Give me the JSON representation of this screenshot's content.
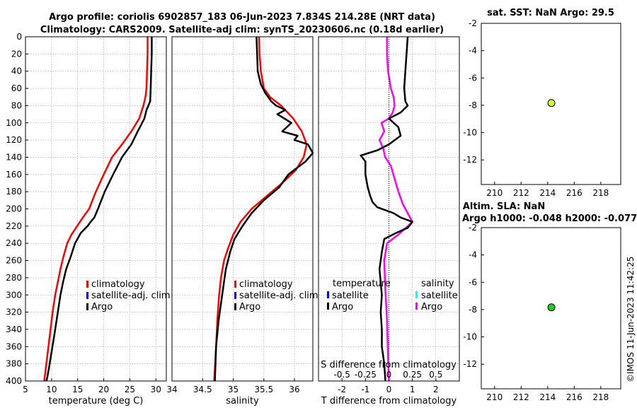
{
  "title_line1": "Argo profile: coriolis 6902857_183 06-Jun-2023 7.834S 214.28E (NRT data)",
  "title_line2": "Climatology: CARS2009. Satellite-adj clim: synTS_20230606.nc (0.18d earlier)",
  "watermark": "©IMOS 11-Jun-2023 11:42:25",
  "legend": {
    "climatology": "climatology",
    "satellite_adj": "satellite-adj. clim",
    "argo": "Argo",
    "temperature_hdr": "temperature",
    "salinity_hdr": "salinity",
    "satellite": "satellite"
  },
  "colors": {
    "climatology": "#ff0000",
    "satellite_adj": "#0000ff",
    "argo": "#000000",
    "sal_satellite": "#00ffff",
    "sal_argo": "#ff00ff",
    "sst_marker": "#ccff33",
    "sla_marker": "#22cc22"
  },
  "chart_data": [
    {
      "id": "temperature",
      "type": "line",
      "xlabel": "temperature (deg C)",
      "ylabel": "",
      "xlim": [
        5,
        32
      ],
      "ylim": [
        400,
        0
      ],
      "xticks": [
        5,
        10,
        15,
        20,
        25,
        30
      ],
      "yticks": [
        0,
        20,
        40,
        60,
        80,
        100,
        120,
        140,
        160,
        180,
        200,
        220,
        240,
        260,
        280,
        300,
        320,
        340,
        360,
        380,
        400
      ],
      "series": [
        {
          "name": "climatology",
          "x": [
            28.4,
            28.4,
            28.3,
            28.2,
            28.0,
            27.6,
            26.8,
            25.3,
            23.5,
            21.6,
            20.0,
            18.5,
            17.2,
            16.0,
            14.9,
            13.8,
            13.0,
            12.3,
            11.7,
            11.2,
            10.7,
            10.2,
            9.8,
            9.4,
            9.1,
            8.8,
            8.6
          ],
          "depth": [
            0,
            20,
            40,
            60,
            70,
            80,
            95,
            110,
            125,
            140,
            160,
            180,
            200,
            210,
            220,
            230,
            240,
            255,
            270,
            285,
            300,
            320,
            340,
            360,
            375,
            390,
            400
          ]
        },
        {
          "name": "Argo",
          "x": [
            29.2,
            29.2,
            29.1,
            29.0,
            28.9,
            28.2,
            27.8,
            26.5,
            25.3,
            23.5,
            21.8,
            20.2,
            18.9,
            18.2,
            17.5,
            16.9,
            15.6,
            14.5,
            13.7,
            12.8,
            12.2,
            11.7,
            11.2,
            10.7,
            10.3,
            9.9,
            9.5,
            9.2,
            9.0
          ],
          "depth": [
            0,
            20,
            40,
            60,
            75,
            85,
            95,
            110,
            125,
            140,
            160,
            180,
            200,
            210,
            215,
            220,
            228,
            240,
            255,
            270,
            285,
            300,
            320,
            340,
            355,
            370,
            385,
            395,
            400
          ]
        }
      ]
    },
    {
      "id": "salinity",
      "type": "line",
      "xlabel": "salinity",
      "ylabel": "",
      "xlim": [
        34,
        36.3
      ],
      "ylim": [
        400,
        0
      ],
      "xticks": [
        34,
        34.5,
        35,
        35.5,
        36
      ],
      "series": [
        {
          "name": "climatology",
          "x": [
            35.42,
            35.43,
            35.45,
            35.5,
            35.6,
            35.78,
            35.98,
            36.12,
            36.2,
            36.15,
            36.02,
            35.8,
            35.55,
            35.3,
            35.12,
            35.0,
            34.92,
            34.85,
            34.8,
            34.77,
            34.74,
            34.72,
            34.7,
            34.69
          ],
          "depth": [
            0,
            20,
            40,
            60,
            70,
            80,
            95,
            110,
            125,
            140,
            155,
            170,
            185,
            200,
            215,
            230,
            245,
            260,
            280,
            300,
            330,
            360,
            385,
            400
          ]
        },
        {
          "name": "Argo",
          "x": [
            35.38,
            35.39,
            35.4,
            35.45,
            35.52,
            35.62,
            35.7,
            35.85,
            35.72,
            35.95,
            35.8,
            36.05,
            36.0,
            36.22,
            36.3,
            36.18,
            35.9,
            35.75,
            35.5,
            35.3,
            35.15,
            35.02,
            34.95,
            34.88,
            34.82,
            34.76,
            34.72,
            34.7
          ],
          "depth": [
            0,
            20,
            40,
            55,
            65,
            75,
            80,
            85,
            90,
            100,
            110,
            115,
            120,
            125,
            135,
            145,
            160,
            175,
            190,
            205,
            220,
            235,
            250,
            270,
            300,
            330,
            360,
            400
          ]
        }
      ]
    },
    {
      "id": "differences",
      "type": "line",
      "xlabel": "T difference from climatology",
      "top_label": "S difference from climatology",
      "xlim": [
        -3,
        3
      ],
      "ylim": [
        400,
        0
      ],
      "xticks": [
        -2,
        -1,
        0,
        1,
        2
      ],
      "sticks": [
        -0.5,
        -0.25,
        0,
        0.25,
        0.5
      ],
      "series": [
        {
          "name": "temperature Argo",
          "x": [
            0.8,
            0.75,
            0.7,
            0.65,
            0.7,
            0.8,
            0.5,
            0.0,
            0.4,
            0.5,
            0.0,
            -0.5,
            -1.2,
            -1.0,
            -1.0,
            -0.9,
            -0.8,
            -0.7,
            -0.5,
            0.2,
            0.5,
            1.0,
            0.8,
            0.3,
            -0.2,
            -0.3,
            -0.4,
            -0.3,
            -0.35,
            -0.3,
            -0.3,
            -0.2,
            -0.15
          ],
          "depth": [
            0,
            20,
            40,
            60,
            75,
            80,
            88,
            95,
            105,
            115,
            125,
            132,
            138,
            145,
            160,
            175,
            185,
            192,
            198,
            205,
            210,
            215,
            222,
            228,
            235,
            250,
            270,
            300,
            320,
            340,
            360,
            380,
            400
          ]
        },
        {
          "name": "salinity Argo",
          "x": [
            -0.02,
            -0.02,
            -0.01,
            0.02,
            0.05,
            0.06,
            0.04,
            0.0,
            -0.08,
            -0.05,
            -0.1,
            -0.06,
            -0.04,
            0.02,
            0.06,
            0.1,
            0.15,
            0.2,
            0.25,
            0.18,
            0.1,
            -0.02,
            -0.05,
            -0.04,
            -0.02,
            -0.01,
            0.0
          ],
          "depth": [
            0,
            20,
            40,
            60,
            70,
            80,
            88,
            95,
            100,
            110,
            120,
            130,
            140,
            150,
            165,
            180,
            195,
            205,
            215,
            222,
            230,
            240,
            260,
            290,
            330,
            370,
            400
          ]
        }
      ]
    },
    {
      "id": "sst",
      "type": "scatter",
      "title": "sat. SST: NaN Argo: 29.5",
      "xlim": [
        209,
        219.5
      ],
      "ylim": [
        -13.8,
        -2
      ],
      "xticks": [
        210,
        212,
        214,
        216,
        218
      ],
      "yticks": [
        -2,
        -4,
        -6,
        -8,
        -10,
        -12
      ],
      "points": [
        {
          "x": 214.28,
          "y": -7.834
        }
      ]
    },
    {
      "id": "sla",
      "type": "scatter",
      "title": "Altim. SLA: NaN",
      "subtitle": "Argo h1000: -0.048 h2000: -0.077",
      "xlim": [
        209,
        219.5
      ],
      "ylim": [
        -13.8,
        -2
      ],
      "xticks": [
        210,
        212,
        214,
        216,
        218
      ],
      "yticks": [
        -2,
        -4,
        -6,
        -8,
        -10,
        -12
      ],
      "points": [
        {
          "x": 214.28,
          "y": -7.834
        }
      ]
    }
  ]
}
